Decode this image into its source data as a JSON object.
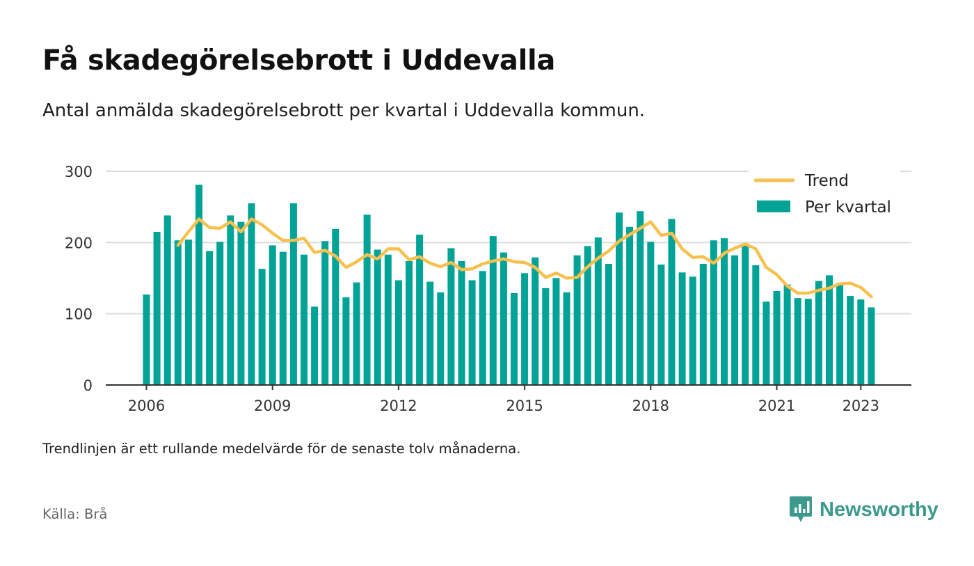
{
  "title": "Få skadegörelsebrott i Uddevalla",
  "subtitle": "Antal anmälda skadegörelsebrott per kvartal i Uddevalla kommun.",
  "note": "Trendlinjen är ett rullande medelvärde för de senaste tolv månaderna.",
  "source": "Källa: Brå",
  "brand": {
    "name": "Newsworthy",
    "icon": "newsworthy-bar-chart-logo-icon",
    "color": "#3b9a8c"
  },
  "colors": {
    "bars": "#00a396",
    "trend": "#f8c14f",
    "grid": "#dddddd",
    "axis": "#333333"
  },
  "chart_data": {
    "type": "bar",
    "title": "Få skadegörelsebrott i Uddevalla",
    "subtitle": "Antal anmälda skadegörelsebrott per kvartal i Uddevalla kommun.",
    "x_ticks": [
      "2006",
      "2009",
      "2012",
      "2015",
      "2018",
      "2021",
      "2023"
    ],
    "y_ticks": [
      0,
      100,
      200,
      300
    ],
    "ylim": [
      0,
      300
    ],
    "grid": "horizontal",
    "legend_position": "top-right",
    "start_year": 2006,
    "series": [
      {
        "name": "Per kvartal",
        "type": "bar",
        "values": [
          127,
          215,
          238,
          203,
          204,
          281,
          188,
          201,
          238,
          229,
          255,
          163,
          196,
          187,
          255,
          183,
          110,
          202,
          219,
          123,
          144,
          239,
          190,
          183,
          147,
          174,
          211,
          145,
          130,
          192,
          174,
          147,
          160,
          209,
          186,
          129,
          157,
          179,
          136,
          150,
          130,
          182,
          195,
          207,
          170,
          242,
          222,
          244,
          201,
          169,
          233,
          158,
          152,
          170,
          203,
          206,
          182,
          196,
          168,
          117,
          132,
          141,
          122,
          121,
          146,
          154,
          143,
          125,
          120,
          109
        ]
      },
      {
        "name": "Trend",
        "type": "line",
        "start_index": 3,
        "values": [
          196,
          215,
          233,
          221,
          220,
          229,
          215,
          233,
          225,
          213,
          203,
          203,
          206,
          186,
          189,
          181,
          165,
          173,
          183,
          177,
          191,
          191,
          176,
          180,
          171,
          166,
          172,
          162,
          163,
          170,
          174,
          177,
          173,
          172,
          165,
          151,
          157,
          150,
          151,
          166,
          178,
          188,
          202,
          211,
          220,
          229,
          210,
          213,
          191,
          179,
          180,
          171,
          185,
          192,
          198,
          191,
          165,
          155,
          139,
          129,
          129,
          133,
          136,
          142,
          143,
          137,
          124
        ]
      }
    ]
  }
}
